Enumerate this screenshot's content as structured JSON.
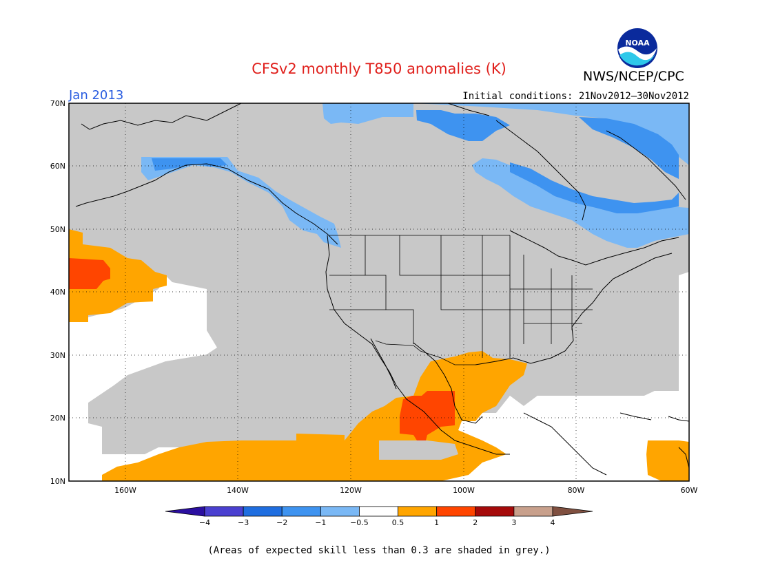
{
  "title": "CFSv2 monthly T850 anomalies (K)",
  "agency": "NWS/NCEP/CPC",
  "logo_text": "NOAA",
  "month": "Jan 2013",
  "initial_conditions": "Initial conditions: 21Nov2012–30Nov2012",
  "footnote": "(Areas of expected skill less than 0.3 are shaded in grey.)",
  "map": {
    "lon_range": [
      -170,
      -60
    ],
    "lat_range": [
      10,
      70
    ],
    "lon_ticks": [
      "160W",
      "140W",
      "120W",
      "100W",
      "80W",
      "60W"
    ],
    "lat_ticks": [
      "70N",
      "60N",
      "50N",
      "40N",
      "30N",
      "20N",
      "10N"
    ],
    "grid": "dotted"
  },
  "colorbar": {
    "labels": [
      "−4",
      "−3",
      "−2",
      "−1",
      "−0.5",
      "0.5",
      "1",
      "2",
      "3",
      "4"
    ],
    "colors": [
      "#2b0fa0",
      "#4a40d0",
      "#1f6ee0",
      "#3e93f0",
      "#7ab8f5",
      "#ffffff",
      "#ffa500",
      "#ff4500",
      "#a50a0a",
      "#c8a08c",
      "#805040"
    ]
  },
  "colors": {
    "grey_skill": "#c8c8c8",
    "light_blue": "#7ab8f5",
    "blue": "#3e93f0",
    "orange": "#ffa500",
    "red_orange": "#ff4500"
  }
}
